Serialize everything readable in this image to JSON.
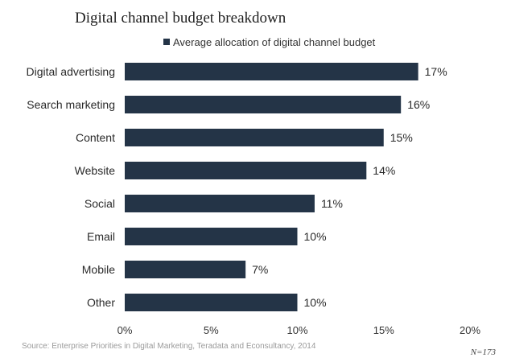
{
  "chart_data": {
    "type": "bar",
    "orientation": "horizontal",
    "title": "Digital channel budget breakdown",
    "legend": {
      "position": "top",
      "entries": [
        "Average allocation of digital channel budget"
      ]
    },
    "categories": [
      "Digital advertising",
      "Search marketing",
      "Content",
      "Website",
      "Social",
      "Email",
      "Mobile",
      "Other"
    ],
    "series": [
      {
        "name": "Average allocation of digital channel budget",
        "values": [
          17,
          16,
          15,
          14,
          11,
          10,
          7,
          10
        ],
        "labels": [
          "17%",
          "16%",
          "15%",
          "14%",
          "11%",
          "10%",
          "7%",
          "10%"
        ]
      }
    ],
    "xlim": [
      0,
      20
    ],
    "xticks": [
      0,
      5,
      10,
      15,
      20
    ],
    "xtick_labels": [
      "0%",
      "5%",
      "10%",
      "15%",
      "20%"
    ],
    "grid": false,
    "bar_color": "#243447"
  },
  "source": "Source: Enterprise Priorities in Digital Marketing, Teradata and Econsultancy, 2014",
  "sample_size": "N=173"
}
